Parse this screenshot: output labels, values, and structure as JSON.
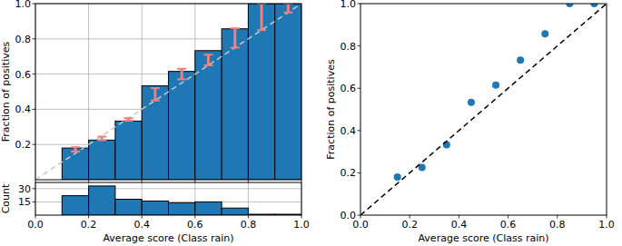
{
  "chart_data": [
    {
      "type": "bar",
      "ylabel": "Fraction of positives",
      "bins": [
        0.1,
        0.2,
        0.3,
        0.4,
        0.5,
        0.6,
        0.7,
        0.8,
        0.9,
        1.0
      ],
      "series": [
        {
          "type": "bar",
          "color": "#1f77b4",
          "values": [
            0.18,
            0.225,
            0.333,
            0.533,
            0.615,
            0.733,
            0.857,
            1.0,
            1.0
          ],
          "error_low": [
            0.16,
            0.225,
            0.335,
            0.45,
            0.57,
            0.65,
            0.75,
            0.85,
            0.95
          ],
          "error_high": [
            0.185,
            0.245,
            0.35,
            0.52,
            0.63,
            0.71,
            0.86,
            1.0,
            1.0
          ]
        },
        {
          "type": "line",
          "x": [
            0,
            1
          ],
          "values": [
            0,
            1
          ],
          "line_style": "dashed",
          "color": "#c8c8c8"
        }
      ],
      "xlim": [
        0,
        1
      ],
      "ylim": [
        0,
        1
      ],
      "xticks": [
        {
          "value": 0,
          "label": "0.0"
        },
        0.2,
        0.4,
        0.6,
        0.8,
        {
          "value": 1,
          "label": "1.0"
        }
      ],
      "yticks": [
        0.2,
        0.4,
        0.6,
        0.8,
        {
          "value": 1,
          "label": "1.0"
        }
      ],
      "tick_labels": "y",
      "grid": true
    },
    {
      "type": "bar",
      "ylabel": "Count",
      "xlabel": "Average score (Class rain)",
      "bins": [
        0.1,
        0.2,
        0.3,
        0.4,
        0.5,
        0.6,
        0.7,
        0.8,
        0.9,
        1.0
      ],
      "values": [
        22,
        33,
        18,
        16,
        14,
        15,
        8,
        1,
        1
      ],
      "color": "#1f77b4",
      "xlim": [
        0,
        1
      ],
      "ylim": [
        0,
        37
      ],
      "xticks": [
        {
          "value": 0,
          "label": "0.0"
        },
        0.2,
        0.4,
        0.6,
        0.8,
        {
          "value": 1,
          "label": "1.0"
        }
      ],
      "yticks": [
        15,
        30
      ],
      "grid": true
    },
    {
      "type": "scatter",
      "ylabel": "Fraction of positives",
      "xlabel": "Average score (Class rain)",
      "series": [
        {
          "type": "scatter",
          "marker": "circle",
          "color": "#1f77b4",
          "x": [
            0.15,
            0.25,
            0.35,
            0.45,
            0.55,
            0.65,
            0.75,
            0.85,
            0.95
          ],
          "values": [
            0.18,
            0.225,
            0.333,
            0.533,
            0.615,
            0.733,
            0.857,
            1.0,
            1.0
          ]
        },
        {
          "type": "line",
          "x": [
            0,
            1
          ],
          "values": [
            0,
            1
          ],
          "line_style": "dashed",
          "color": "#000000"
        }
      ],
      "xlim": [
        0,
        1
      ],
      "ylim": [
        0,
        1
      ],
      "xticks": [
        {
          "value": 0,
          "label": "0.0"
        },
        0.2,
        0.4,
        0.6,
        0.8,
        {
          "value": 1,
          "label": "1.0"
        }
      ],
      "yticks": [
        {
          "value": 0,
          "label": "0.0"
        },
        0.2,
        0.4,
        0.6,
        0.8,
        {
          "value": 1,
          "label": "1.0"
        }
      ],
      "grid": false
    }
  ]
}
